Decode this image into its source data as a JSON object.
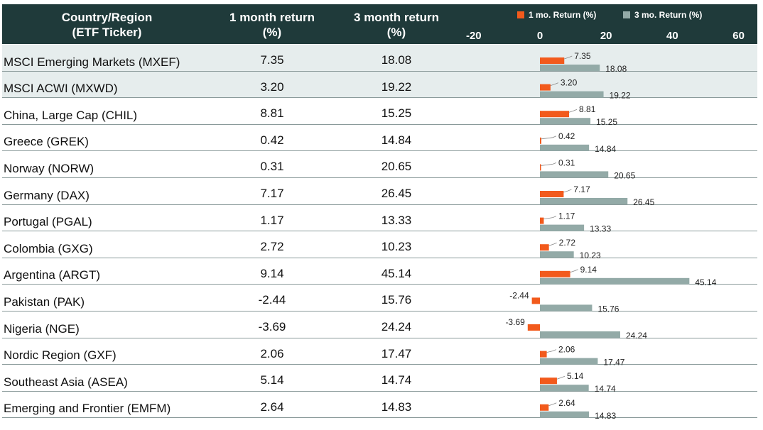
{
  "header": {
    "col1_line1": "Country/Region",
    "col1_line2": "(ETF Ticker)",
    "col2_line1": "1 month return",
    "col2_line2": "(%)",
    "col3_line1": "3 month return",
    "col3_line2": "(%)"
  },
  "colors": {
    "header_bg": "#1f3a3a",
    "one_month": "#f25a1c",
    "three_month": "#93aaa7",
    "shaded_row": "#e6eded"
  },
  "chart_data": {
    "type": "bar",
    "orientation": "horizontal",
    "xlim": [
      -20,
      60
    ],
    "ticks": [
      "-20",
      "0",
      "20",
      "40",
      "60"
    ],
    "legend_position": "top",
    "categories": [
      "MSCI Emerging Markets (MXEF)",
      "MSCI ACWI (MXWD)",
      "China, Large Cap (CHIL)",
      "Greece (GREK)",
      "Norway (NORW)",
      "Germany (DAX)",
      "Portugal (PGAL)",
      "Colombia (GXG)",
      "Argentina (ARGT)",
      "Pakistan (PAK)",
      "Nigeria (NGE)",
      "Nordic Region (GXF)",
      "Southeast Asia (ASEA)",
      "Emerging and Frontier (EMFM)"
    ],
    "series": [
      {
        "name": "1 mo. Return (%)",
        "values": [
          7.35,
          3.2,
          8.81,
          0.42,
          0.31,
          7.17,
          1.17,
          2.72,
          9.14,
          -2.44,
          -3.69,
          2.06,
          5.14,
          2.64
        ],
        "labels": [
          "7.35",
          "3.20",
          "8.81",
          "0.42",
          "0.31",
          "7.17",
          "1.17",
          "2.72",
          "9.14",
          "-2.44",
          "-3.69",
          "2.06",
          "5.14",
          "2.64"
        ]
      },
      {
        "name": "3 mo. Return (%)",
        "values": [
          18.08,
          19.22,
          15.25,
          14.84,
          20.65,
          26.45,
          13.33,
          10.23,
          45.14,
          15.76,
          24.24,
          17.47,
          14.74,
          14.83
        ],
        "labels": [
          "18.08",
          "19.22",
          "15.25",
          "14.84",
          "20.65",
          "26.45",
          "13.33",
          "10.23",
          "45.14",
          "15.76",
          "24.24",
          "17.47",
          "14.74",
          "14.83"
        ]
      }
    ],
    "shaded_rows": [
      0,
      1
    ]
  }
}
